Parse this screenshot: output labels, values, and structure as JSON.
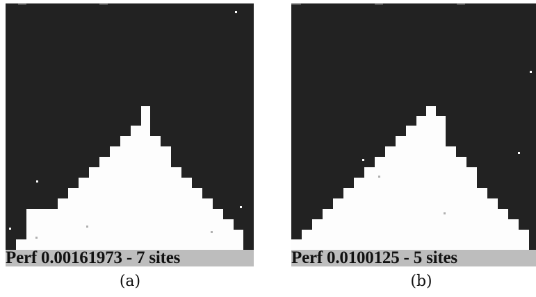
{
  "colors": {
    "background": "#222222",
    "foreground": "#fdfdfd",
    "footer": "#bdbdbd",
    "site": "#b0b0b0"
  },
  "panels": [
    {
      "footer_text": "Perf 0.00161973 - 7 sites",
      "caption": "(a)",
      "sites": 7
    },
    {
      "footer_text": "Perf 0.0100125 - 5 sites",
      "caption": "(b)",
      "sites": 5
    }
  ]
}
